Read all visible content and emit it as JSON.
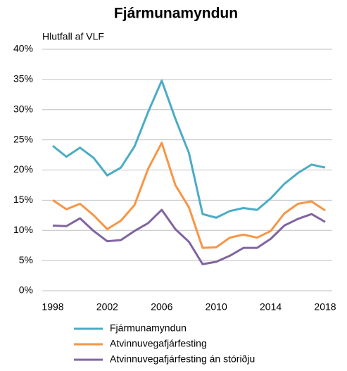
{
  "chart_data": {
    "type": "line",
    "title": "Fjármunamyndun",
    "y_label": "Hlutfall af VLF",
    "x": [
      1998,
      1999,
      2000,
      2001,
      2002,
      2003,
      2004,
      2005,
      2006,
      2007,
      2008,
      2009,
      2010,
      2011,
      2012,
      2013,
      2014,
      2015,
      2016,
      2017,
      2018
    ],
    "xlim": [
      1998,
      2018
    ],
    "xticks": [
      1998,
      2002,
      2006,
      2010,
      2014,
      2018
    ],
    "ylim": [
      0,
      40
    ],
    "yticks": [
      {
        "value": 0,
        "label": "0%"
      },
      {
        "value": 5,
        "label": "5%"
      },
      {
        "value": 10,
        "label": "10%"
      },
      {
        "value": 15,
        "label": "15%"
      },
      {
        "value": 20,
        "label": "20%"
      },
      {
        "value": 25,
        "label": "25%"
      },
      {
        "value": 30,
        "label": "30%"
      },
      {
        "value": 35,
        "label": "35%"
      },
      {
        "value": 40,
        "label": "40%"
      }
    ],
    "grid": true,
    "legend": "bottom",
    "series": [
      {
        "name": "Fjármunamyndun",
        "color": "#4bacc6",
        "values": [
          24.0,
          22.2,
          23.7,
          22.0,
          19.1,
          20.4,
          23.9,
          29.6,
          34.8,
          28.5,
          22.8,
          12.7,
          12.1,
          13.2,
          13.7,
          13.4,
          15.3,
          17.7,
          19.5,
          20.9,
          20.4
        ]
      },
      {
        "name": "Atvinnuvegafjárfesting",
        "color": "#f79646",
        "values": [
          15.0,
          13.5,
          14.4,
          12.5,
          10.2,
          11.6,
          14.2,
          20.2,
          24.5,
          17.5,
          13.8,
          7.1,
          7.2,
          8.8,
          9.3,
          8.8,
          9.9,
          12.8,
          14.4,
          14.8,
          13.3
        ]
      },
      {
        "name": "Atvinnuvegafjárfesting án stóriðju",
        "color": "#8064a2",
        "values": [
          10.8,
          10.7,
          12.0,
          9.9,
          8.2,
          8.4,
          9.9,
          11.2,
          13.4,
          10.2,
          8.1,
          4.4,
          4.8,
          5.8,
          7.1,
          7.1,
          8.6,
          10.8,
          11.9,
          12.7,
          11.4
        ]
      }
    ]
  }
}
